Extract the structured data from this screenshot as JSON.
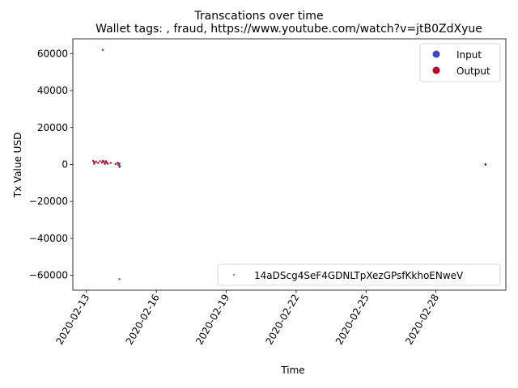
{
  "chart_data": {
    "type": "scatter",
    "title": "Transcations over time",
    "subtitle": "Wallet tags: , fraud, https://www.youtube.com/watch?v=jtB0ZdXyue",
    "xlabel": "Time",
    "ylabel": "Tx Value USD",
    "x_ticks": [
      "2020-02-13",
      "2020-02-16",
      "2020-02-19",
      "2020-02-22",
      "2020-02-25",
      "2020-02-28"
    ],
    "y_ticks": [
      "−60000",
      "−40000",
      "−20000",
      "0",
      "20000",
      "40000",
      "60000"
    ],
    "xlim": [
      "2020-02-12T10:00",
      "2020-03-02T00:00"
    ],
    "ylim": [
      -68000,
      68000
    ],
    "legend_placement": "top-right",
    "grid": false,
    "series": [
      {
        "name": "Input",
        "color": "#3b4cc0",
        "points": [
          {
            "x": "2020-02-14T10:00",
            "y": -600
          },
          {
            "x": "2020-02-14T10:00",
            "y": -1500
          },
          {
            "x": "2020-02-14T10:30",
            "y": -800
          },
          {
            "x": "2020-02-14T09:00",
            "y": -300
          },
          {
            "x": "2020-02-13T19:00",
            "y": 300
          },
          {
            "x": "2020-02-14T10:00",
            "y": -62000
          },
          {
            "x": "2020-03-01T03:00",
            "y": -200
          }
        ]
      },
      {
        "name": "Output",
        "color": "#b40426",
        "points": [
          {
            "x": "2020-02-13T17:00",
            "y": 62000
          },
          {
            "x": "2020-02-13T07:00",
            "y": 2000
          },
          {
            "x": "2020-02-13T08:00",
            "y": 1200
          },
          {
            "x": "2020-02-13T08:00",
            "y": 400
          },
          {
            "x": "2020-02-13T10:00",
            "y": 1500
          },
          {
            "x": "2020-02-13T12:00",
            "y": 800
          },
          {
            "x": "2020-02-13T14:00",
            "y": 1800
          },
          {
            "x": "2020-02-13T16:00",
            "y": 1000
          },
          {
            "x": "2020-02-13T17:00",
            "y": 2000
          },
          {
            "x": "2020-02-13T18:00",
            "y": 1500
          },
          {
            "x": "2020-02-13T19:00",
            "y": 600
          },
          {
            "x": "2020-02-13T20:00",
            "y": 1800
          },
          {
            "x": "2020-02-13T21:00",
            "y": 1000
          },
          {
            "x": "2020-02-13T22:00",
            "y": 400
          },
          {
            "x": "2020-02-14T01:00",
            "y": 800
          },
          {
            "x": "2020-02-14T06:00",
            "y": 200
          },
          {
            "x": "2020-02-14T08:00",
            "y": 1000
          },
          {
            "x": "2020-02-14T09:00",
            "y": 300
          },
          {
            "x": "2020-02-14T10:00",
            "y": 500
          },
          {
            "x": "2020-03-01T03:00",
            "y": 200
          }
        ]
      }
    ],
    "wallet_series": {
      "name": "14aDScg4SeF4GDNLTpXezGPsfKkhoENweV",
      "color": "#1f77b4"
    }
  }
}
